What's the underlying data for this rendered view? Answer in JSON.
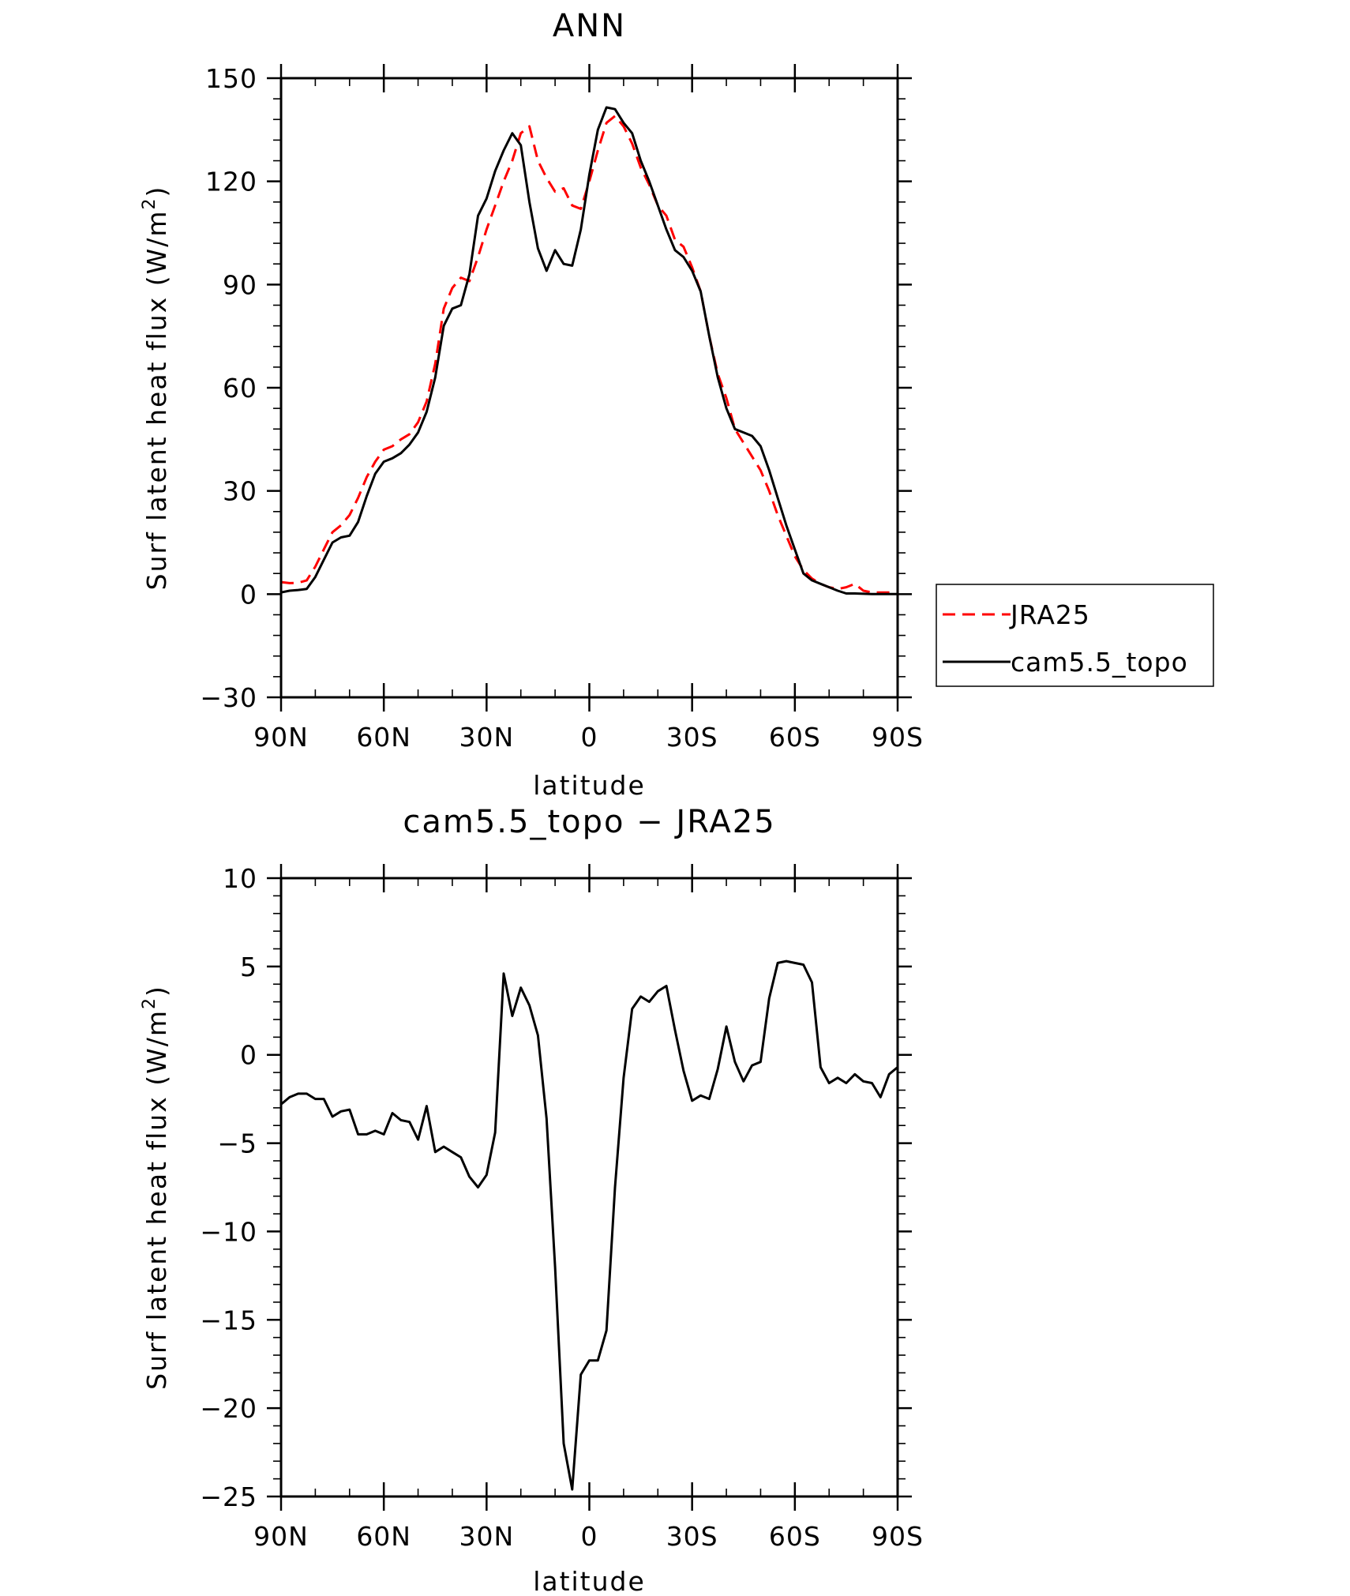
{
  "chart_data": [
    {
      "type": "line",
      "title": "ANN",
      "xlabel": "latitude",
      "ylabel_main": "Surf latent heat flux (W/m",
      "ylabel_sup": "2",
      "ylabel_close": ")",
      "xlim": [
        90,
        -90
      ],
      "ylim": [
        -30,
        150
      ],
      "x_ticks": [
        {
          "value": 90,
          "label": "90N"
        },
        {
          "value": 60,
          "label": "60N"
        },
        {
          "value": 30,
          "label": "30N"
        },
        {
          "value": 0,
          "label": "0"
        },
        {
          "value": -30,
          "label": "30S"
        },
        {
          "value": -60,
          "label": "60S"
        },
        {
          "value": -90,
          "label": "90S"
        }
      ],
      "y_ticks": [
        {
          "value": 150,
          "label": "150"
        },
        {
          "value": 120,
          "label": "120"
        },
        {
          "value": 90,
          "label": "90"
        },
        {
          "value": 60,
          "label": "60"
        },
        {
          "value": 30,
          "label": "30"
        },
        {
          "value": 0,
          "label": "0"
        },
        {
          "value": -30,
          "label": "−30"
        }
      ],
      "legend": "right",
      "series": [
        {
          "name": "JRA25",
          "color": "#ff0000",
          "dash": "dashed",
          "x": [
            90,
            87.5,
            85,
            82.5,
            80,
            77.5,
            75,
            72.5,
            70,
            67.5,
            65,
            62.5,
            60,
            57.5,
            55,
            52.5,
            50,
            47.5,
            45,
            42.5,
            40,
            37.5,
            35,
            32.5,
            30,
            27.5,
            25,
            22.5,
            20,
            17.5,
            15,
            12.5,
            10,
            7.5,
            5,
            2.5,
            0,
            -2.5,
            -5,
            -7.5,
            -10,
            -12.5,
            -15,
            -17.5,
            -20,
            -22.5,
            -25,
            -27.5,
            -30,
            -32.5,
            -35,
            -37.5,
            -40,
            -42.5,
            -45,
            -47.5,
            -50,
            -52.5,
            -55,
            -57.5,
            -60,
            -62.5,
            -65,
            -67.5,
            -70,
            -72.5,
            -75,
            -77.5,
            -80,
            -82.5,
            -85,
            -87.5,
            -90
          ],
          "y": [
            3.5,
            3.2,
            3.3,
            4.0,
            8.0,
            13.0,
            18.0,
            20.0,
            23.0,
            28.0,
            34.0,
            38.5,
            42.0,
            43.0,
            45.0,
            46.5,
            50.0,
            56.0,
            67.0,
            83.0,
            89.0,
            92.0,
            91.0,
            98.0,
            106.0,
            113.0,
            120.0,
            126.0,
            134.0,
            136.0,
            126.0,
            121.0,
            117.0,
            118.0,
            113.0,
            112.0,
            120.0,
            129.0,
            137.0,
            139.0,
            136.0,
            131.0,
            124.0,
            119.0,
            113.0,
            110.0,
            103.0,
            101.0,
            95.0,
            88.0,
            75.0,
            64.0,
            57.0,
            48.0,
            44.0,
            40.0,
            36.0,
            30.0,
            23.0,
            17.0,
            11.0,
            7.0,
            4.5,
            3.0,
            2.0,
            1.5,
            2.0,
            3.0,
            1.0,
            0.5,
            0.5,
            0.5,
            0.5
          ]
        },
        {
          "name": "cam5.5_topo",
          "color": "#000000",
          "dash": "solid",
          "x": [
            90,
            87.5,
            85,
            82.5,
            80,
            77.5,
            75,
            72.5,
            70,
            67.5,
            65,
            62.5,
            60,
            57.5,
            55,
            52.5,
            50,
            47.5,
            45,
            42.5,
            40,
            37.5,
            35,
            32.5,
            30,
            27.5,
            25,
            22.5,
            20,
            17.5,
            15,
            12.5,
            10,
            7.5,
            5,
            2.5,
            0,
            -2.5,
            -5,
            -7.5,
            -10,
            -12.5,
            -15,
            -17.5,
            -20,
            -22.5,
            -25,
            -27.5,
            -30,
            -32.5,
            -35,
            -37.5,
            -40,
            -42.5,
            -45,
            -47.5,
            -50,
            -52.5,
            -55,
            -57.5,
            -60,
            -62.5,
            -65,
            -67.5,
            -70,
            -72.5,
            -75,
            -77.5,
            -80,
            -82.5,
            -85,
            -87.5,
            -90
          ],
          "y": [
            0.5,
            1.0,
            1.2,
            1.5,
            5.0,
            10.0,
            15.0,
            16.5,
            17.0,
            21.0,
            28.5,
            35.0,
            38.5,
            39.5,
            41.0,
            43.5,
            47.0,
            53.0,
            63.0,
            78.0,
            83.0,
            84.0,
            93.0,
            110.0,
            115.0,
            123.0,
            129.0,
            134.0,
            130.5,
            114.0,
            100.5,
            94.0,
            100.0,
            96.0,
            95.5,
            106.0,
            122.0,
            135.0,
            141.5,
            141.0,
            137.0,
            134.0,
            126.0,
            120.0,
            113.0,
            106.0,
            100.0,
            98.0,
            94.0,
            88.0,
            75.0,
            63.0,
            54.0,
            48.0,
            47.0,
            46.0,
            43.0,
            36.0,
            28.0,
            20.0,
            13.0,
            6.0,
            4.0,
            3.0,
            2.0,
            1.0,
            0.2,
            0.2,
            0.1,
            0.0,
            0.0,
            0.0,
            0.0
          ]
        }
      ]
    },
    {
      "type": "line",
      "title": "cam5.5_topo − JRA25",
      "xlabel": "latitude",
      "ylabel_main": "Surf latent heat flux (W/m",
      "ylabel_sup": "2",
      "ylabel_close": ")",
      "xlim": [
        90,
        -90
      ],
      "ylim": [
        -25,
        10
      ],
      "x_ticks": [
        {
          "value": 90,
          "label": "90N"
        },
        {
          "value": 60,
          "label": "60N"
        },
        {
          "value": 30,
          "label": "30N"
        },
        {
          "value": 0,
          "label": "0"
        },
        {
          "value": -30,
          "label": "30S"
        },
        {
          "value": -60,
          "label": "60S"
        },
        {
          "value": -90,
          "label": "90S"
        }
      ],
      "y_ticks": [
        {
          "value": 10,
          "label": "10"
        },
        {
          "value": 5,
          "label": "5"
        },
        {
          "value": 0,
          "label": "0"
        },
        {
          "value": -5,
          "label": "−5"
        },
        {
          "value": -10,
          "label": "−10"
        },
        {
          "value": -15,
          "label": "−15"
        },
        {
          "value": -20,
          "label": "−20"
        },
        {
          "value": -25,
          "label": "−25"
        }
      ],
      "series": [
        {
          "color": "#000000",
          "dash": "solid",
          "x": [
            90,
            87.5,
            85,
            82.5,
            80,
            77.5,
            75,
            72.5,
            70,
            67.5,
            65,
            62.5,
            60,
            57.5,
            55,
            52.5,
            50,
            47.5,
            45,
            42.5,
            40,
            37.5,
            35,
            32.5,
            30,
            27.5,
            25,
            22.5,
            20,
            17.5,
            15,
            12.5,
            10,
            7.5,
            5,
            2.5,
            0,
            -2.5,
            -5,
            -7.5,
            -10,
            -12.5,
            -15,
            -17.5,
            -20,
            -22.5,
            -25,
            -27.5,
            -30,
            -32.5,
            -35,
            -37.5,
            -40,
            -42.5,
            -45,
            -47.5,
            -50,
            -52.5,
            -55,
            -57.5,
            -60,
            -62.5,
            -65,
            -67.5,
            -70,
            -72.5,
            -75,
            -77.5,
            -80,
            -82.5,
            -85,
            -87.5,
            -90
          ],
          "y": [
            -2.8,
            -2.4,
            -2.2,
            -2.2,
            -2.5,
            -2.5,
            -3.5,
            -3.2,
            -3.1,
            -4.5,
            -4.5,
            -4.3,
            -4.5,
            -3.3,
            -3.7,
            -3.8,
            -4.8,
            -2.9,
            -5.5,
            -5.2,
            -5.5,
            -5.8,
            -6.9,
            -7.5,
            -6.8,
            -4.4,
            4.6,
            2.2,
            3.8,
            2.8,
            1.1,
            -3.6,
            -12.0,
            -22.0,
            -24.6,
            -18.1,
            -17.3,
            -17.3,
            -15.6,
            -7.5,
            -1.3,
            2.6,
            3.3,
            3.0,
            3.6,
            3.9,
            1.4,
            -0.9,
            -2.6,
            -2.3,
            -2.5,
            -0.8,
            1.6,
            -0.4,
            -1.5,
            -0.6,
            -0.4,
            3.2,
            5.2,
            5.3,
            5.2,
            5.1,
            4.1,
            -0.7,
            -1.6,
            -1.3,
            -1.6,
            -1.1,
            -1.5,
            -1.6,
            -2.4,
            -1.1,
            -0.7
          ]
        }
      ]
    }
  ]
}
